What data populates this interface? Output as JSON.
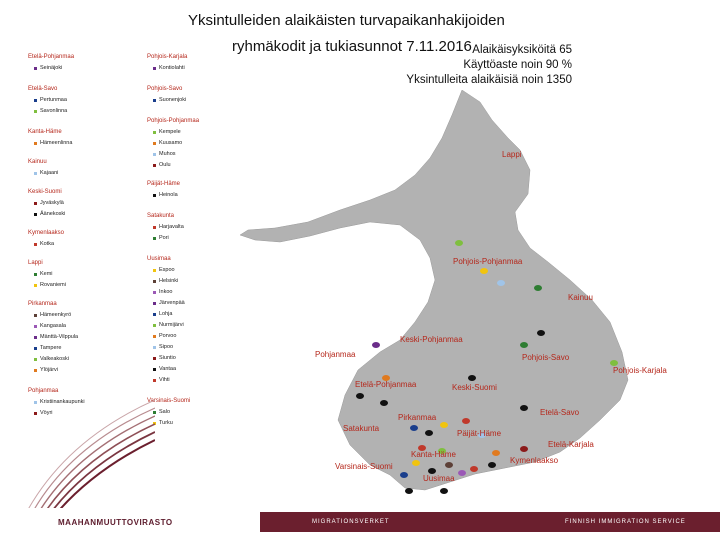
{
  "header": {
    "title_line1": "Yksintulleiden alaikäisten turvapaikanhakijoiden",
    "title_line2": "ryhmäkodit ja tukiasunnot 7.11.2016",
    "stat_units": "Alaikäisyksiköitä 65",
    "stat_occupancy": "Käyttöaste noin 90 %",
    "stat_minors": "Yksintulleita alaikäisiä noin 1350"
  },
  "legend_col1": [
    {
      "region": "Etelä-Pohjanmaa",
      "items": [
        "Seinäjoki"
      ]
    },
    {
      "region": "Etelä-Savo",
      "items": [
        "Pertunmaa",
        "Savonlinna"
      ]
    },
    {
      "region": "Kanta-Häme",
      "items": [
        "Hämeenlinna"
      ]
    },
    {
      "region": "Kainuu",
      "items": [
        "Kajaani"
      ]
    },
    {
      "region": "Keski-Suomi",
      "items": [
        "Jyväskylä",
        "Äänekoski"
      ]
    },
    {
      "region": "Kymenlaakso",
      "items": [
        "Kotka"
      ]
    },
    {
      "region": "Lappi",
      "items": [
        "Kemi",
        "Rovaniemi"
      ]
    },
    {
      "region": "Pirkanmaa",
      "items": [
        "Hämeenkyrö",
        "Kangasala",
        "Mänttä-Vilppula",
        "Tampere",
        "Valkeakoski",
        "Ylöjärvi"
      ]
    },
    {
      "region": "Pohjanmaa",
      "items": [
        "Kristiinankaupunki",
        "Vöyri"
      ]
    }
  ],
  "legend_col2": [
    {
      "region": "Pohjois-Karjala",
      "items": [
        "Kontiolahti"
      ]
    },
    {
      "region": "Pohjois-Savo",
      "items": [
        "Suonenjoki"
      ]
    },
    {
      "region": "Pohjois-Pohjanmaa",
      "items": [
        "Kempele",
        "Kuusamo",
        "Muhos",
        "Oulu"
      ]
    },
    {
      "region": "Päijät-Häme",
      "items": [
        "Heinola"
      ]
    },
    {
      "region": "Satakunta",
      "items": [
        "Harjavalta",
        "Pori"
      ]
    },
    {
      "region": "Uusimaa",
      "items": [
        "Espoo",
        "Helsinki",
        "Inkoo",
        "Järvenpää",
        "Lohja",
        "Nurmijärvi",
        "Porvoo",
        "Sipoo",
        "Siuntio",
        "Vantaa",
        "Vihti"
      ]
    },
    {
      "region": "Varsinais-Suomi",
      "items": [
        "Salo",
        "Turku"
      ]
    }
  ],
  "map_labels": {
    "lappi": "Lappi",
    "pohjois_pohjanmaa": "Pohjois-Pohjanmaa",
    "kainuu": "Kainuu",
    "keski_pohjanmaa": "Keski-Pohjanmaa",
    "pohjanmaa": "Pohjanmaa",
    "pohjois_savo": "Pohjois-Savo",
    "pohjois_karjala": "Pohjois-Karjala",
    "etela_pohjanmaa": "Etelä-Pohjanmaa",
    "keski_suomi": "Keski-Suomi",
    "etela_savo": "Etelä-Savo",
    "pirkanmaa": "Pirkanmaa",
    "satakunta": "Satakunta",
    "paijat_hame": "Päijät-Häme",
    "etela_karjala": "Etelä-Karjala",
    "kanta_hame": "Kanta-Häme",
    "kymenlaakso": "Kymenlaakso",
    "varsinais_suomi": "Varsinais-Suomi",
    "uusimaa": "Uusimaa"
  },
  "footer": {
    "logo": "MAAHANMUUTTOVIRASTO",
    "sv": "MIGRATIONSVERKET",
    "en": "FINNISH IMMIGRATION SERVICE"
  },
  "colors": {
    "accent": "#b5271b",
    "footer_bar": "#6b1f2e",
    "map_fill": "#b2b2b2"
  }
}
